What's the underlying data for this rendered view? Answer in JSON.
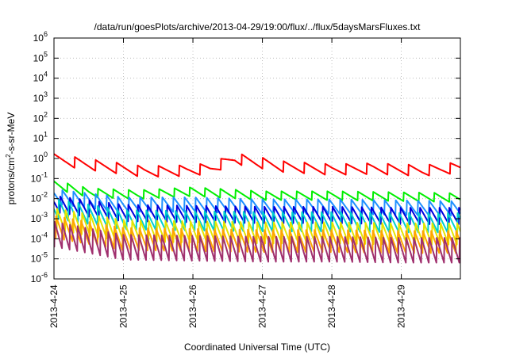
{
  "chart_data": {
    "type": "line",
    "title": "/data/run/goesPlots/archive/2013-04-29/19:00/flux/../flux/5daysMarsFluxes.txt",
    "xlabel": "Coordinated Universal Time (UTC)",
    "ylabel": {
      "base": "protons/cm",
      "sup": "2",
      "rest": "-s-sr-MeV"
    },
    "y_scale": "log",
    "ylim_exp": [
      -6,
      6
    ],
    "y_ticks": [
      {
        "base": "10",
        "exp": "-6"
      },
      {
        "base": "10",
        "exp": "-5"
      },
      {
        "base": "10",
        "exp": "-4"
      },
      {
        "base": "10",
        "exp": "-3"
      },
      {
        "base": "10",
        "exp": "-2"
      },
      {
        "base": "10",
        "exp": "-1"
      },
      {
        "base": "10",
        "exp": "0"
      },
      {
        "base": "10",
        "exp": "1"
      },
      {
        "base": "10",
        "exp": "2"
      },
      {
        "base": "10",
        "exp": "3"
      },
      {
        "base": "10",
        "exp": "4"
      },
      {
        "base": "10",
        "exp": "5"
      },
      {
        "base": "10",
        "exp": "6"
      }
    ],
    "x_range_days": [
      0,
      5.85
    ],
    "x_ticks": [
      {
        "label": "2013-4-24",
        "day": 0
      },
      {
        "label": "2013-4-25",
        "day": 1
      },
      {
        "label": "2013-4-26",
        "day": 2
      },
      {
        "label": "2013-4-27",
        "day": 3
      },
      {
        "label": "2013-4-28",
        "day": 4
      },
      {
        "label": "2013-4-29",
        "day": 5
      }
    ],
    "grid": true,
    "series": [
      {
        "color": "#ff0000",
        "period": 0.3,
        "amp": 0.55,
        "base": [
          [
            0,
            -0.05
          ],
          [
            0.6,
            -0.35
          ],
          [
            1.3,
            -0.65
          ],
          [
            1.9,
            -0.6
          ],
          [
            2.25,
            -0.5
          ],
          [
            2.6,
            0.0
          ],
          [
            3.3,
            -0.4
          ],
          [
            4.0,
            -0.55
          ],
          [
            4.6,
            -0.5
          ],
          [
            5.3,
            -0.6
          ],
          [
            5.85,
            -0.45
          ]
        ]
      },
      {
        "color": "#00ee00",
        "period": 0.22,
        "amp": 0.45,
        "base": [
          [
            0,
            -1.3
          ],
          [
            0.5,
            -1.7
          ],
          [
            1.2,
            -1.8
          ],
          [
            2.0,
            -1.65
          ],
          [
            3.0,
            -1.85
          ],
          [
            4.0,
            -1.85
          ],
          [
            5.0,
            -1.9
          ],
          [
            5.85,
            -1.95
          ]
        ]
      },
      {
        "color": "#1e90ff",
        "period": 0.16,
        "amp": 0.75,
        "base": [
          [
            0,
            -1.9
          ],
          [
            1.0,
            -2.3
          ],
          [
            2.0,
            -2.3
          ],
          [
            3.0,
            -2.4
          ],
          [
            4.0,
            -2.4
          ],
          [
            5.0,
            -2.45
          ],
          [
            5.85,
            -2.5
          ]
        ]
      },
      {
        "color": "#0000dd",
        "period": 0.14,
        "amp": 0.85,
        "base": [
          [
            0,
            -2.25
          ],
          [
            1.0,
            -2.7
          ],
          [
            2.0,
            -2.75
          ],
          [
            3.0,
            -2.8
          ],
          [
            4.0,
            -2.8
          ],
          [
            5.0,
            -2.85
          ],
          [
            5.85,
            -2.85
          ]
        ]
      },
      {
        "color": "#00cfcf",
        "period": 0.14,
        "amp": 1.0,
        "base": [
          [
            0,
            -2.5
          ],
          [
            1.0,
            -3.05
          ],
          [
            2.0,
            -3.1
          ],
          [
            3.0,
            -3.15
          ],
          [
            4.0,
            -3.15
          ],
          [
            5.0,
            -3.2
          ],
          [
            5.85,
            -3.2
          ]
        ]
      },
      {
        "color": "#e5e500",
        "period": 0.12,
        "amp": 1.1,
        "base": [
          [
            0,
            -3.0
          ],
          [
            1.0,
            -3.6
          ],
          [
            2.0,
            -3.65
          ],
          [
            3.0,
            -3.7
          ],
          [
            4.0,
            -3.7
          ],
          [
            5.0,
            -3.75
          ],
          [
            5.85,
            -3.75
          ]
        ]
      },
      {
        "color": "#ffa500",
        "period": 0.12,
        "amp": 1.15,
        "base": [
          [
            0,
            -3.4
          ],
          [
            1.0,
            -4.0
          ],
          [
            2.0,
            -4.05
          ],
          [
            3.0,
            -4.1
          ],
          [
            4.0,
            -4.1
          ],
          [
            5.0,
            -4.15
          ],
          [
            5.85,
            -4.15
          ]
        ]
      },
      {
        "color": "#a0306e",
        "period": 0.11,
        "amp": 1.3,
        "base": [
          [
            0,
            -3.8
          ],
          [
            1.0,
            -4.45
          ],
          [
            2.0,
            -4.5
          ],
          [
            3.0,
            -4.55
          ],
          [
            4.0,
            -4.55
          ],
          [
            5.0,
            -4.6
          ],
          [
            5.85,
            -4.6
          ]
        ]
      }
    ]
  }
}
